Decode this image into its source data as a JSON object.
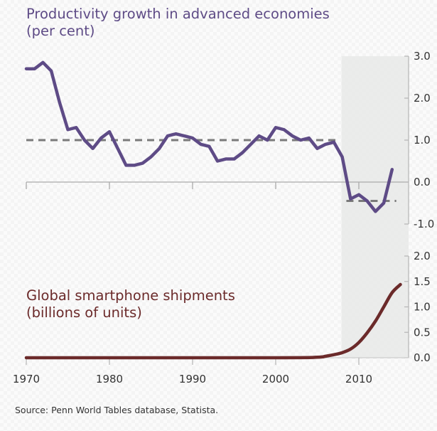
{
  "chart_data": [
    {
      "type": "line",
      "title": "Productivity growth in advanced economies",
      "subtitle": "(per cent)",
      "xlabel": "",
      "ylabel": "",
      "xlim": [
        1970,
        2016
      ],
      "ylim": [
        -1.0,
        3.0
      ],
      "y_ticks": [
        "3.0",
        "2.0",
        "1.0",
        "0.0",
        "-1.0"
      ],
      "y_axis_side": "right",
      "grid": false,
      "color": "#5e4b86",
      "series": [
        {
          "name": "Productivity growth",
          "x": [
            1970,
            1971,
            1972,
            1973,
            1974,
            1975,
            1976,
            1977,
            1978,
            1979,
            1980,
            1981,
            1982,
            1983,
            1984,
            1985,
            1986,
            1987,
            1988,
            1989,
            1990,
            1991,
            1992,
            1993,
            1994,
            1995,
            1996,
            1997,
            1998,
            1999,
            2000,
            2001,
            2002,
            2003,
            2004,
            2005,
            2006,
            2007,
            2008,
            2009,
            2010,
            2011,
            2012,
            2013,
            2014
          ],
          "values": [
            2.7,
            2.7,
            2.85,
            2.65,
            1.9,
            1.25,
            1.3,
            1.0,
            0.8,
            1.05,
            1.2,
            0.8,
            0.4,
            0.4,
            0.45,
            0.6,
            0.8,
            1.1,
            1.15,
            1.1,
            1.05,
            0.9,
            0.85,
            0.5,
            0.55,
            0.55,
            0.7,
            0.9,
            1.1,
            1.0,
            1.3,
            1.25,
            1.1,
            1.0,
            1.05,
            0.8,
            0.9,
            0.95,
            0.6,
            -0.4,
            -0.3,
            -0.45,
            -0.7,
            -0.5,
            0.3
          ]
        }
      ],
      "reference_lines": [
        {
          "name": "pre-crisis average",
          "x": [
            1970,
            2007.5
          ],
          "value": 1.0,
          "style": "dashed",
          "color": "#7a7a7a"
        },
        {
          "name": "post-crisis average",
          "x": [
            2008.5,
            2014.5
          ],
          "value": -0.45,
          "style": "dashed",
          "color": "#7a7a7a"
        }
      ]
    },
    {
      "type": "line",
      "title": "Global smartphone shipments",
      "subtitle": "(billions of units)",
      "xlabel": "",
      "ylabel": "",
      "xlim": [
        1970,
        2016
      ],
      "ylim": [
        0.0,
        2.0
      ],
      "y_ticks": [
        "2.0",
        "1.5",
        "1.0",
        "0.5",
        "0.0"
      ],
      "y_axis_side": "right",
      "x_ticks": [
        "1970",
        "1980",
        "1990",
        "2000",
        "2010"
      ],
      "grid": false,
      "color": "#6b2a2a",
      "series": [
        {
          "name": "Smartphone shipments",
          "x": [
            1970,
            2000,
            2005,
            2006,
            2007,
            2008,
            2009,
            2010,
            2011,
            2012,
            2013,
            2014,
            2015
          ],
          "values": [
            0,
            0,
            0.01,
            0.03,
            0.06,
            0.1,
            0.17,
            0.3,
            0.49,
            0.72,
            1.0,
            1.28,
            1.44
          ]
        }
      ]
    }
  ],
  "shaded_region": {
    "x": [
      2008,
      2016
    ],
    "color": "#e7e9e7"
  },
  "titles": {
    "top_line1": "Productivity growth in advanced economies",
    "top_line2": "(per cent)",
    "bottom_line1": "Global smartphone shipments",
    "bottom_line2": "(billions of units)"
  },
  "source": "Source:  Penn World Tables database, Statista."
}
